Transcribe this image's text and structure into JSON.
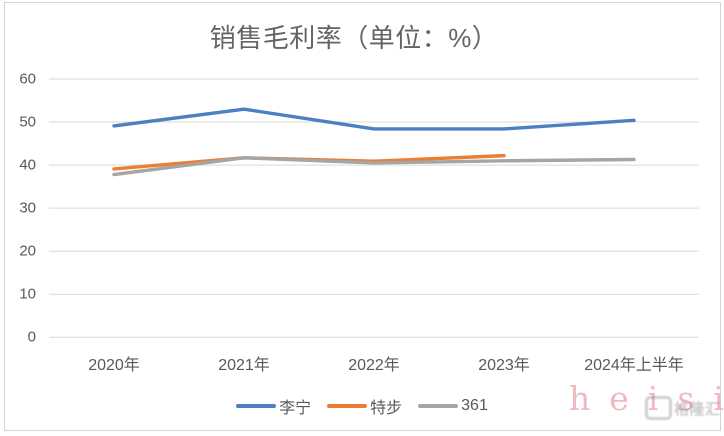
{
  "chart_data": {
    "type": "line",
    "title": "销售毛利率（单位：%）",
    "categories": [
      "2020年",
      "2021年",
      "2022年",
      "2023年",
      "2024年上半年"
    ],
    "series": [
      {
        "name": "李宁",
        "color": "#4b80c2",
        "values": [
          49.1,
          53.0,
          48.4,
          48.4,
          50.4
        ]
      },
      {
        "name": "特步",
        "color": "#ed7d31",
        "values": [
          39.1,
          41.7,
          40.9,
          42.2,
          null
        ]
      },
      {
        "name": "361",
        "color": "#a5a5a5",
        "values": [
          37.8,
          41.7,
          40.5,
          41.0,
          41.3
        ]
      }
    ],
    "ylim": [
      0,
      60
    ],
    "y_ticks": [
      0,
      10,
      20,
      30,
      40,
      50,
      60
    ],
    "grid": true,
    "gridline_color": "#d9d9d9",
    "legend_position": "bottom"
  },
  "watermark": {
    "text": "heisi",
    "color": "#edaab3",
    "logo_text": "格隆汇"
  }
}
